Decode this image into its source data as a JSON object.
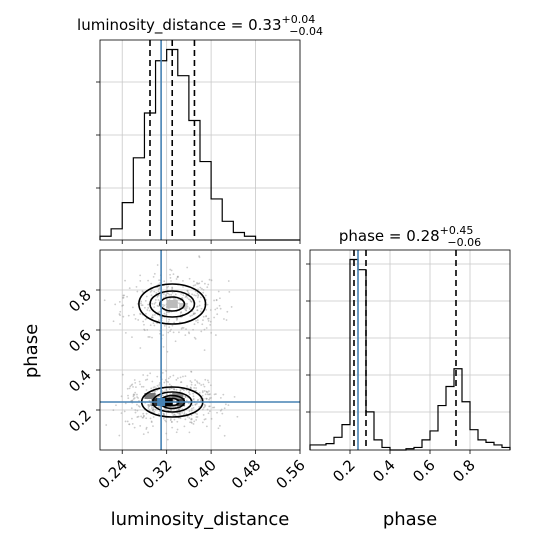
{
  "chart_data": [
    {
      "type": "histogram",
      "panel": "luminosity_distance-marginal",
      "title": {
        "param": "luminosity_distance",
        "value": "0.33",
        "plus": "+0.04",
        "minus": "−0.04"
      },
      "x_range": [
        0.2,
        0.56
      ],
      "bins_x": [
        0.2,
        0.22,
        0.24,
        0.26,
        0.28,
        0.3,
        0.32,
        0.34,
        0.36,
        0.38,
        0.4,
        0.42,
        0.44,
        0.46,
        0.48,
        0.5,
        0.52,
        0.54,
        0.56
      ],
      "counts": [
        1,
        3,
        10,
        22,
        34,
        48,
        51,
        44,
        32,
        21,
        11,
        5,
        2,
        1,
        0,
        0,
        0,
        0
      ],
      "quantiles": [
        0.29,
        0.33,
        0.37
      ],
      "truth": 0.31,
      "colors": {
        "line": "#000000",
        "truth": "#4682b4",
        "grid": "#c8c8c8"
      }
    },
    {
      "type": "histogram",
      "panel": "phase-marginal",
      "title": {
        "param": "phase",
        "value": "0.28",
        "plus": "+0.45",
        "minus": "−0.06"
      },
      "x_range": [
        0.0,
        1.0
      ],
      "bins_x": [
        0.0,
        0.04,
        0.08,
        0.12,
        0.16,
        0.2,
        0.24,
        0.28,
        0.32,
        0.36,
        0.4,
        0.44,
        0.48,
        0.52,
        0.56,
        0.6,
        0.64,
        0.68,
        0.72,
        0.76,
        0.8,
        0.84,
        0.88,
        0.92,
        0.96,
        1.0
      ],
      "counts": [
        4,
        4,
        5,
        10,
        20,
        150,
        142,
        30,
        8,
        2,
        0,
        0,
        1,
        2,
        8,
        15,
        35,
        50,
        64,
        38,
        16,
        8,
        6,
        4,
        2
      ],
      "quantiles": [
        0.22,
        0.28,
        0.73
      ],
      "truth": 0.24,
      "xticks": [
        "0.2",
        "0.4",
        "0.6",
        "0.8"
      ],
      "xlabel": "phase"
    },
    {
      "type": "2d-histogram-contour",
      "panel": "joint",
      "x_param": "luminosity_distance",
      "y_param": "phase",
      "x_range": [
        0.2,
        0.56
      ],
      "y_range": [
        0.0,
        1.0
      ],
      "xticks": [
        "0.24",
        "0.32",
        "0.40",
        "0.48",
        "0.56"
      ],
      "yticks": [
        "0.2",
        "0.4",
        "0.6",
        "0.8"
      ],
      "xlabel": "luminosity_distance",
      "ylabel": "phase",
      "truth": {
        "x": 0.31,
        "y": 0.24
      },
      "modes": [
        {
          "x": 0.33,
          "y": 0.24,
          "sx": 0.035,
          "sy": 0.055,
          "weight": 0.6
        },
        {
          "x": 0.33,
          "y": 0.73,
          "sx": 0.035,
          "sy": 0.065,
          "weight": 0.4
        }
      ],
      "contours": [
        {
          "mode": 0,
          "levels": [
            [
              0.055,
              0.075
            ],
            [
              0.035,
              0.05
            ],
            [
              0.022,
              0.032
            ],
            [
              0.012,
              0.018
            ]
          ]
        },
        {
          "mode": 1,
          "levels": [
            [
              0.06,
              0.1
            ],
            [
              0.04,
              0.065
            ],
            [
              0.022,
              0.035
            ]
          ]
        }
      ]
    }
  ]
}
